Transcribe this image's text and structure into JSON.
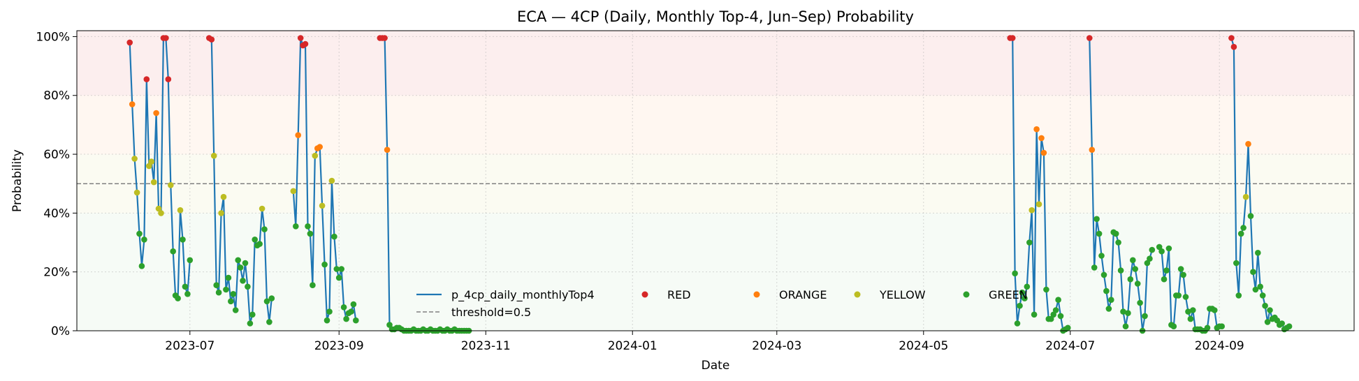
{
  "chart_data": {
    "type": "line",
    "title": "ECA — 4CP (Daily,  Monthly Top-4, Jun–Sep) Probability",
    "xlabel": "Date",
    "ylabel": "Probability",
    "xlim": [
      "2023-05-15",
      "2024-10-27"
    ],
    "ylim": [
      0,
      1.02
    ],
    "x_ticks": [
      "2023-07-01",
      "2023-09-01",
      "2023-11-01",
      "2024-01-01",
      "2024-03-01",
      "2024-05-01",
      "2024-07-01",
      "2024-09-01"
    ],
    "x_tick_labels": [
      "2023-07",
      "2023-09",
      "2023-11",
      "2024-01",
      "2024-03",
      "2024-05",
      "2024-07",
      "2024-09"
    ],
    "y_ticks": [
      0,
      0.2,
      0.4,
      0.6,
      0.8,
      1.0
    ],
    "y_tick_labels": [
      "0%",
      "20%",
      "40%",
      "60%",
      "80%",
      "100%"
    ],
    "grid": true,
    "legend_placement": "lower center",
    "threshold": {
      "value": 0.5,
      "label": "threshold=0.5",
      "color": "#808080"
    },
    "line_series": {
      "name": "p_4cp_daily_monthlyTop4",
      "color": "#1f77b4"
    },
    "bands": [
      {
        "from": 0.0,
        "to": 0.4,
        "color": "#2ca02c",
        "opacity": 0.045
      },
      {
        "from": 0.4,
        "to": 0.6,
        "color": "#bcbd22",
        "opacity": 0.06
      },
      {
        "from": 0.6,
        "to": 0.8,
        "color": "#ff7f0e",
        "opacity": 0.06
      },
      {
        "from": 0.8,
        "to": 1.02,
        "color": "#d62728",
        "opacity": 0.08
      }
    ],
    "categories": [
      {
        "name": "RED",
        "min": 0.8,
        "color": "#d62728"
      },
      {
        "name": "ORANGE",
        "min": 0.6,
        "color": "#ff7f0e"
      },
      {
        "name": "YELLOW",
        "min": 0.4,
        "color": "#bcbd22"
      },
      {
        "name": "GREEN",
        "min": 0.0,
        "color": "#2ca02c"
      }
    ],
    "segments": [
      {
        "start": "2023-06-06",
        "values": [
          0.98,
          0.77,
          0.585,
          0.47,
          0.33,
          0.22,
          0.31,
          0.855,
          0.56,
          0.575,
          0.505,
          0.74,
          0.415,
          0.4,
          0.995,
          0.995,
          0.855,
          0.495,
          0.27,
          0.12,
          0.11,
          0.41,
          0.31,
          0.15,
          0.125,
          0.24,
          null,
          null,
          null,
          null,
          null,
          null,
          null,
          0.995,
          0.99,
          0.595,
          0.155,
          0.13,
          0.4,
          0.455,
          0.14,
          0.18,
          0.1,
          0.125,
          0.07,
          0.24,
          0.215,
          0.17,
          0.23,
          0.15,
          0.025,
          0.055,
          0.31,
          0.29,
          0.295,
          0.415,
          0.345,
          0.1,
          0.03,
          0.11,
          null,
          null,
          null,
          null,
          null,
          null,
          null,
          null,
          0.475,
          0.355,
          0.665,
          0.995,
          0.97,
          0.975,
          0.355,
          0.33,
          0.155,
          0.595,
          0.62,
          0.625,
          0.425,
          0.225,
          0.035,
          0.065,
          0.51,
          0.32,
          0.21,
          0.18,
          0.21,
          0.08,
          0.04,
          0.06,
          0.065,
          0.09,
          0.035,
          null,
          null,
          null,
          null,
          null,
          null,
          null,
          null,
          null,
          0.995,
          0.995,
          0.995,
          0.615,
          0.02,
          0.005,
          0.005,
          0.01,
          0.01,
          0.005,
          0.0,
          0.0,
          0.0,
          0.0,
          0.005,
          0.0,
          0.0,
          0.0,
          0.005,
          0.0,
          0.0,
          0.005,
          0.0,
          0.0,
          0.0,
          0.005,
          0.0,
          0.0,
          0.005,
          0.0,
          0.0,
          0.005,
          0.0,
          0.0,
          0.0,
          0.0,
          0.0,
          0.0
        ]
      },
      {
        "start": "2024-06-06",
        "values": [
          0.995,
          0.995,
          0.195,
          0.025,
          0.085,
          0.13,
          0.11,
          0.15,
          0.3,
          0.41,
          0.055,
          0.685,
          0.43,
          0.655,
          0.605,
          0.14,
          0.04,
          0.04,
          0.055,
          0.07,
          0.105,
          0.05,
          0.0,
          0.005,
          0.01,
          null,
          null,
          null,
          null,
          null,
          null,
          null,
          null,
          0.995,
          0.615,
          0.215,
          0.38,
          0.33,
          0.255,
          0.19,
          0.135,
          0.075,
          0.105,
          0.335,
          0.33,
          0.3,
          0.205,
          0.065,
          0.015,
          0.06,
          0.175,
          0.24,
          0.21,
          0.16,
          0.095,
          0.0,
          0.05,
          0.23,
          0.245,
          0.275,
          null,
          null,
          0.285,
          0.27,
          0.175,
          0.205,
          0.28,
          0.02,
          0.015,
          0.12,
          0.12,
          0.21,
          0.19,
          0.115,
          0.065,
          0.04,
          0.07,
          0.005,
          0.005,
          0.005,
          0.0,
          0.0,
          0.01,
          0.075,
          0.075,
          0.07,
          0.01,
          0.015,
          0.015,
          null,
          null,
          null,
          0.995,
          0.965,
          0.23,
          0.12,
          0.33,
          0.35,
          0.455,
          0.635,
          0.39,
          0.2,
          0.14,
          0.265,
          0.15,
          0.12,
          0.085,
          0.03,
          0.07,
          0.04,
          0.045,
          0.035,
          0.02,
          0.025,
          0.005,
          0.01,
          0.015
        ]
      }
    ]
  }
}
